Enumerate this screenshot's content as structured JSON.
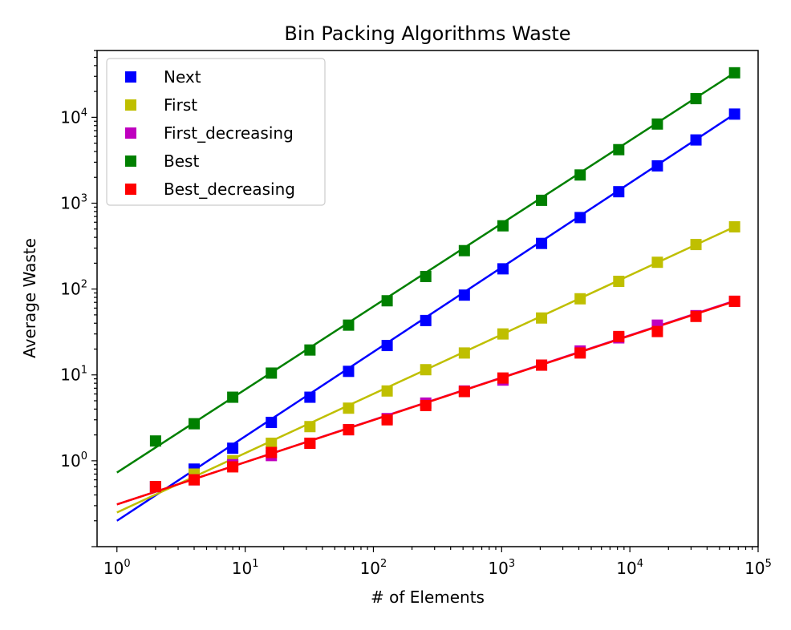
{
  "chart_data": {
    "type": "line",
    "title": "Bin Packing Algorithms Waste",
    "xlabel": "# of Elements",
    "ylabel": "Average Waste",
    "xscale": "log",
    "yscale": "log",
    "xlim": [
      0.7,
      100000
    ],
    "ylim": [
      0.1,
      60000
    ],
    "xticks": [
      {
        "base": "10",
        "exp": "0",
        "value": 1
      },
      {
        "base": "10",
        "exp": "1",
        "value": 10
      },
      {
        "base": "10",
        "exp": "2",
        "value": 100
      },
      {
        "base": "10",
        "exp": "3",
        "value": 1000
      },
      {
        "base": "10",
        "exp": "4",
        "value": 10000
      },
      {
        "base": "10",
        "exp": "5",
        "value": 100000
      }
    ],
    "yticks": [
      {
        "base": "10",
        "exp": "0",
        "value": 1
      },
      {
        "base": "10",
        "exp": "1",
        "value": 10
      },
      {
        "base": "10",
        "exp": "2",
        "value": 100
      },
      {
        "base": "10",
        "exp": "3",
        "value": 1000
      },
      {
        "base": "10",
        "exp": "4",
        "value": 10000
      }
    ],
    "grid": false,
    "legend_position": "top-left",
    "x": [
      2,
      4,
      8,
      16,
      32,
      64,
      128,
      256,
      512,
      1024,
      2048,
      4096,
      8192,
      16384,
      32768,
      65536
    ],
    "series": [
      {
        "name": "Next",
        "color": "#0000ff",
        "values": [
          0.5,
          0.8,
          1.4,
          2.8,
          5.5,
          11,
          22,
          43,
          85,
          172,
          340,
          680,
          1360,
          2720,
          5450,
          10900
        ],
        "fit": [
          [
            1,
            0.2
          ],
          [
            65536,
            10900
          ]
        ]
      },
      {
        "name": "First",
        "color": "#bfbf00",
        "values": [
          0.5,
          0.7,
          1.0,
          1.6,
          2.5,
          4.1,
          6.5,
          11.5,
          18,
          30,
          46,
          77,
          123,
          205,
          330,
          530
        ],
        "fit": [
          [
            1,
            0.25
          ],
          [
            65536,
            530
          ]
        ]
      },
      {
        "name": "First_decreasing",
        "color": "#bf00bf",
        "values": [
          0.5,
          0.6,
          0.9,
          1.15,
          1.6,
          2.3,
          3.1,
          4.7,
          6.5,
          8.7,
          13,
          19,
          27,
          38,
          49,
          72
        ],
        "fit": [
          [
            1,
            0.31
          ],
          [
            65536,
            73
          ]
        ]
      },
      {
        "name": "Best",
        "color": "#008000",
        "values": [
          1.7,
          2.7,
          5.5,
          10.5,
          19.5,
          38,
          73,
          140,
          280,
          545,
          1080,
          2130,
          4200,
          8350,
          16500,
          33000
        ],
        "fit": [
          [
            1,
            0.73
          ],
          [
            65536,
            33000
          ]
        ]
      },
      {
        "name": "Best_decreasing",
        "color": "#ff0000",
        "values": [
          0.5,
          0.6,
          0.85,
          1.25,
          1.6,
          2.3,
          3.0,
          4.4,
          6.4,
          9.2,
          13,
          18,
          28,
          32,
          48,
          72
        ],
        "fit": [
          [
            1,
            0.31
          ],
          [
            65536,
            72
          ]
        ]
      }
    ]
  }
}
